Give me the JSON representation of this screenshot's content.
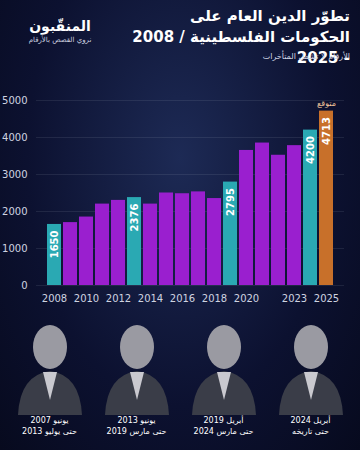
{
  "header": {
    "logo": "المنقّبون",
    "tagline": "نروي القصص بالأرقام"
  },
  "chart_data": {
    "type": "bar",
    "title": "تطوّر الدين العام على\nالحكومات الفلسطينية / 2008 - 2025",
    "subtitle": "الأرقام لا تشمل المتأخرات",
    "categories": [
      "2008",
      null,
      "2010",
      null,
      "2012",
      null,
      "2014",
      null,
      "2016",
      null,
      "2018",
      null,
      "2020",
      null,
      null,
      "2023",
      null,
      "2025"
    ],
    "values": [
      1650,
      1700,
      1850,
      2200,
      2300,
      2376,
      2200,
      2500,
      2480,
      2530,
      2350,
      2795,
      3650,
      3850,
      3520,
      3780,
      4200,
      4713
    ],
    "value_labels": [
      "1650",
      null,
      null,
      null,
      null,
      "2376",
      null,
      null,
      null,
      null,
      null,
      "2795",
      null,
      null,
      null,
      null,
      "4200",
      "4713"
    ],
    "colors": [
      "#2aa9b3",
      "#9a1fcf",
      "#9a1fcf",
      "#9a1fcf",
      "#9a1fcf",
      "#2aa9b3",
      "#9a1fcf",
      "#9a1fcf",
      "#9a1fcf",
      "#9a1fcf",
      "#9a1fcf",
      "#2aa9b3",
      "#9a1fcf",
      "#9a1fcf",
      "#9a1fcf",
      "#9a1fcf",
      "#2aa9b3",
      "#c8702a"
    ],
    "data_labels": true,
    "annotation": {
      "text": "متوقع",
      "category": "2025"
    },
    "ylim": [
      0,
      5000
    ],
    "yticks": [
      0,
      1000,
      2000,
      3000,
      4000,
      5000
    ],
    "grid": true
  },
  "footer": {
    "periods": [
      {
        "from": "يونيو 2007",
        "to": "حتى يوليو 2013"
      },
      {
        "from": "يونيو 2013",
        "to": "حتى مارس 2019"
      },
      {
        "from": "أبريل 2019",
        "to": "حتى مارس 2024"
      },
      {
        "from": "أبريل 2024",
        "to": "حتى تاريخه"
      }
    ]
  }
}
